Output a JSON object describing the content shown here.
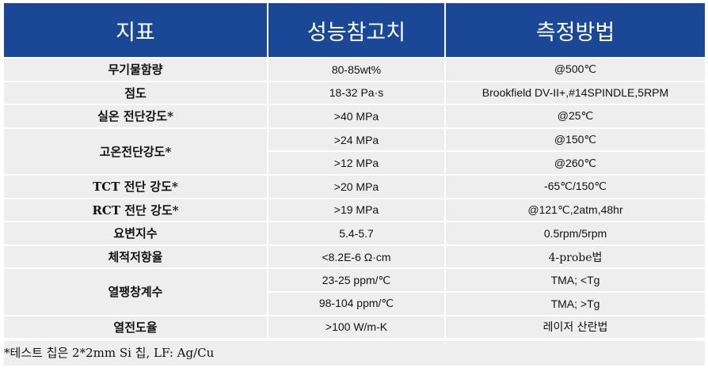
{
  "header": {
    "col1": "지표",
    "col2": "성능참고치",
    "col3": "측정방법"
  },
  "rows": [
    {
      "name": "무기물함량",
      "value": "80-85wt%",
      "method": "@500℃"
    },
    {
      "name": "점도",
      "value": "18-32 Pa·s",
      "method": "Brookfield DV-II+,#14SPINDLE,5RPM"
    },
    {
      "name": "실온 전단강도*",
      "value": ">40 MPa",
      "method": "@25℃"
    },
    {
      "name": "고온전단강도*",
      "sub": [
        {
          "value": ">24 MPa",
          "method": "@150℃"
        },
        {
          "value": ">12 MPa",
          "method": "@260℃"
        }
      ]
    },
    {
      "name": "TCT 전단 강도*",
      "value": ">20 MPa",
      "method": "-65℃/150℃"
    },
    {
      "name": "RCT 전단 강도*",
      "value": ">19 MPa",
      "method": "@121℃,2atm,48hr"
    },
    {
      "name": "요변지수",
      "value": "5.4-5.7",
      "method": "0.5rpm/5rpm"
    },
    {
      "name": "체적저항율",
      "value": "<8.2E-6 Ω·cm",
      "method": "4-probe법"
    },
    {
      "name": "열팽창계수",
      "sub": [
        {
          "value": "23-25 ppm/℃",
          "method": "TMA; <Tg"
        },
        {
          "value": "98-104 ppm/℃",
          "method": "TMA; >Tg"
        }
      ]
    },
    {
      "name": "열전도율",
      "value": ">100 W/m-K",
      "method": "레이저 산란법"
    }
  ],
  "footnote": "*테스트 칩은 2*2mm Si 칩, LF: Ag/Cu",
  "colors": {
    "header_bg": "#1b4896",
    "cell_bg": "#eeeeee"
  }
}
